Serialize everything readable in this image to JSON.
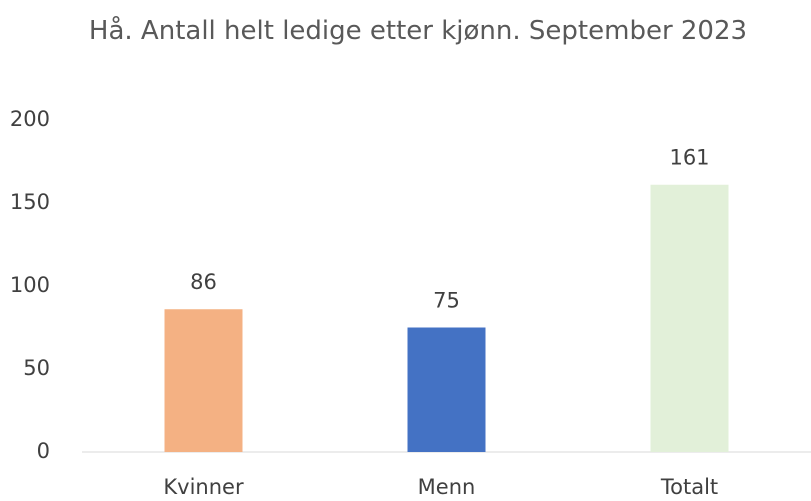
{
  "chart_data": {
    "type": "bar",
    "title": "Hå. Antall helt ledige etter kjønn. September 2023",
    "categories": [
      "Kvinner",
      "Menn",
      "Totalt"
    ],
    "values": [
      86,
      75,
      161
    ],
    "colors": [
      "#f4b183",
      "#4472c4",
      "#e2f0d9"
    ],
    "ylim": [
      0,
      200
    ],
    "yticks": [
      0,
      50,
      100,
      150,
      200
    ],
    "grid": false
  }
}
